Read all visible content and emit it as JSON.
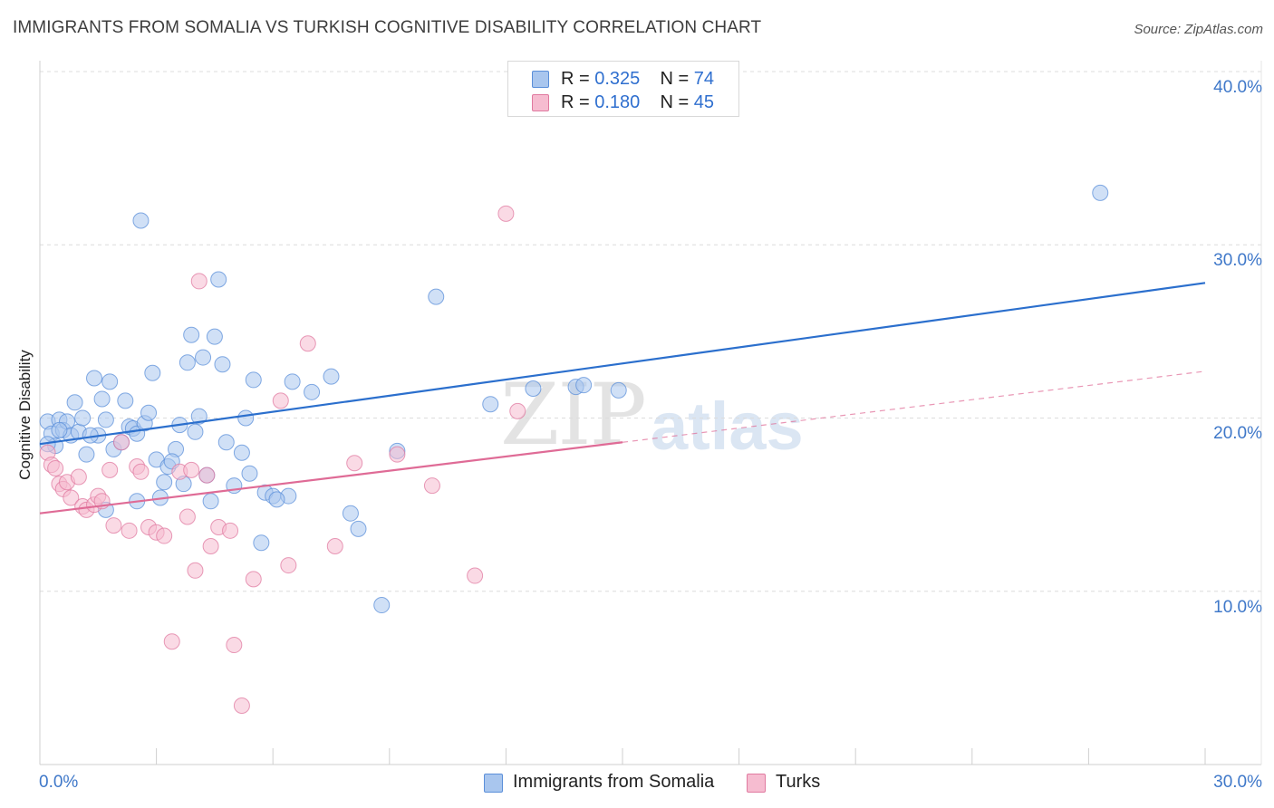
{
  "title": "IMMIGRANTS FROM SOMALIA VS TURKISH COGNITIVE DISABILITY CORRELATION CHART",
  "source": "Source: ZipAtlas.com",
  "watermark": {
    "zip": "ZIP",
    "atlas": "atlas"
  },
  "colors": {
    "blue": "#5b8fd9",
    "blue_fill": "#a9c6ee",
    "pink": "#e07aa0",
    "pink_fill": "#f6bcd0",
    "blue_line": "#2b6fcd",
    "pink_line": "#df6b96"
  },
  "legend": [
    {
      "r_label": "R = ",
      "r_value": "0.325",
      "n_label": "N = ",
      "n_value": "74"
    },
    {
      "r_label": "R = ",
      "r_value": "0.180",
      "n_label": "N = ",
      "n_value": "45"
    }
  ],
  "chart_data": {
    "type": "scatter",
    "title": "IMMIGRANTS FROM SOMALIA VS TURKISH COGNITIVE DISABILITY CORRELATION CHART",
    "xlabel": "",
    "ylabel": "Cognitive Disability",
    "xlim": [
      0,
      30
    ],
    "ylim": [
      0,
      40
    ],
    "x_tick_labels": [
      "0.0%",
      "30.0%"
    ],
    "y_ticks": [
      10,
      20,
      30,
      40
    ],
    "y_tick_labels": [
      "10.0%",
      "20.0%",
      "30.0%",
      "40.0%"
    ],
    "grid": true,
    "series": [
      {
        "name": "Immigrants from Somalia",
        "r": 0.325,
        "n": 74,
        "trend": {
          "x0": 0,
          "y0": 18.5,
          "x1": 30,
          "y1": 27.8,
          "dashed_from": null
        },
        "points": [
          [
            0.2,
            19.8
          ],
          [
            0.3,
            19.1
          ],
          [
            0.4,
            18.4
          ],
          [
            0.5,
            19.9
          ],
          [
            0.6,
            19.3
          ],
          [
            0.7,
            19.8
          ],
          [
            0.8,
            19.0
          ],
          [
            0.9,
            20.9
          ],
          [
            1.0,
            19.2
          ],
          [
            1.1,
            20.0
          ],
          [
            1.2,
            17.9
          ],
          [
            1.4,
            22.3
          ],
          [
            1.5,
            19.0
          ],
          [
            1.6,
            21.1
          ],
          [
            1.7,
            19.9
          ],
          [
            1.8,
            22.1
          ],
          [
            1.9,
            18.2
          ],
          [
            2.1,
            18.6
          ],
          [
            2.2,
            21.0
          ],
          [
            2.3,
            19.5
          ],
          [
            2.4,
            19.4
          ],
          [
            2.5,
            19.1
          ],
          [
            2.7,
            19.7
          ],
          [
            2.8,
            20.3
          ],
          [
            2.9,
            22.6
          ],
          [
            3.0,
            17.6
          ],
          [
            3.1,
            15.4
          ],
          [
            3.2,
            16.3
          ],
          [
            3.3,
            17.2
          ],
          [
            3.5,
            18.2
          ],
          [
            3.6,
            19.6
          ],
          [
            3.7,
            16.2
          ],
          [
            3.8,
            23.2
          ],
          [
            3.9,
            24.8
          ],
          [
            4.0,
            19.2
          ],
          [
            4.1,
            20.1
          ],
          [
            4.2,
            23.5
          ],
          [
            4.3,
            16.7
          ],
          [
            4.4,
            15.2
          ],
          [
            4.5,
            24.7
          ],
          [
            4.6,
            28.0
          ],
          [
            4.7,
            23.1
          ],
          [
            4.8,
            18.6
          ],
          [
            5.0,
            16.1
          ],
          [
            5.2,
            18.0
          ],
          [
            5.3,
            20.0
          ],
          [
            5.4,
            16.8
          ],
          [
            5.5,
            22.2
          ],
          [
            5.8,
            15.7
          ],
          [
            6.0,
            15.5
          ],
          [
            2.6,
            31.4
          ],
          [
            1.7,
            14.7
          ],
          [
            6.4,
            15.5
          ],
          [
            6.5,
            22.1
          ],
          [
            7.0,
            21.5
          ],
          [
            7.5,
            22.4
          ],
          [
            8.0,
            14.5
          ],
          [
            2.5,
            15.2
          ],
          [
            5.7,
            12.8
          ],
          [
            8.2,
            13.6
          ],
          [
            8.8,
            9.2
          ],
          [
            9.2,
            18.1
          ],
          [
            10.2,
            27.0
          ],
          [
            11.6,
            20.8
          ],
          [
            12.7,
            21.7
          ],
          [
            13.8,
            21.8
          ],
          [
            14.0,
            21.9
          ],
          [
            14.9,
            21.6
          ],
          [
            0.2,
            18.5
          ],
          [
            0.5,
            19.3
          ],
          [
            1.3,
            19.0
          ],
          [
            3.4,
            17.5
          ],
          [
            6.1,
            15.3
          ],
          [
            27.3,
            33.0
          ]
        ]
      },
      {
        "name": "Turks",
        "r": 0.18,
        "n": 45,
        "trend": {
          "x0": 0,
          "y0": 14.5,
          "x1": 30,
          "y1": 22.7,
          "dashed_from": 15.0
        },
        "points": [
          [
            0.2,
            18.0
          ],
          [
            0.3,
            17.3
          ],
          [
            0.4,
            17.1
          ],
          [
            0.5,
            16.2
          ],
          [
            0.6,
            15.9
          ],
          [
            0.7,
            16.3
          ],
          [
            0.8,
            15.4
          ],
          [
            1.0,
            16.6
          ],
          [
            1.1,
            14.9
          ],
          [
            1.2,
            14.7
          ],
          [
            1.4,
            15.0
          ],
          [
            1.5,
            15.5
          ],
          [
            1.6,
            15.2
          ],
          [
            1.8,
            17.0
          ],
          [
            1.9,
            13.8
          ],
          [
            2.1,
            18.6
          ],
          [
            2.3,
            13.5
          ],
          [
            2.5,
            17.2
          ],
          [
            2.6,
            16.9
          ],
          [
            2.8,
            13.7
          ],
          [
            3.0,
            13.4
          ],
          [
            3.2,
            13.2
          ],
          [
            3.4,
            7.1
          ],
          [
            3.6,
            16.9
          ],
          [
            3.8,
            14.3
          ],
          [
            3.9,
            17.0
          ],
          [
            4.0,
            11.2
          ],
          [
            4.1,
            27.9
          ],
          [
            4.3,
            16.7
          ],
          [
            4.4,
            12.6
          ],
          [
            4.6,
            13.7
          ],
          [
            4.9,
            13.5
          ],
          [
            5.0,
            6.9
          ],
          [
            5.2,
            3.4
          ],
          [
            5.5,
            10.7
          ],
          [
            6.2,
            21.0
          ],
          [
            6.4,
            11.5
          ],
          [
            6.9,
            24.3
          ],
          [
            7.6,
            12.6
          ],
          [
            8.1,
            17.4
          ],
          [
            9.2,
            17.9
          ],
          [
            10.1,
            16.1
          ],
          [
            11.2,
            10.9
          ],
          [
            12.0,
            31.8
          ],
          [
            12.3,
            20.4
          ]
        ]
      }
    ]
  },
  "bottom_legend": [
    {
      "label": "Immigrants from Somalia"
    },
    {
      "label": "Turks"
    }
  ]
}
